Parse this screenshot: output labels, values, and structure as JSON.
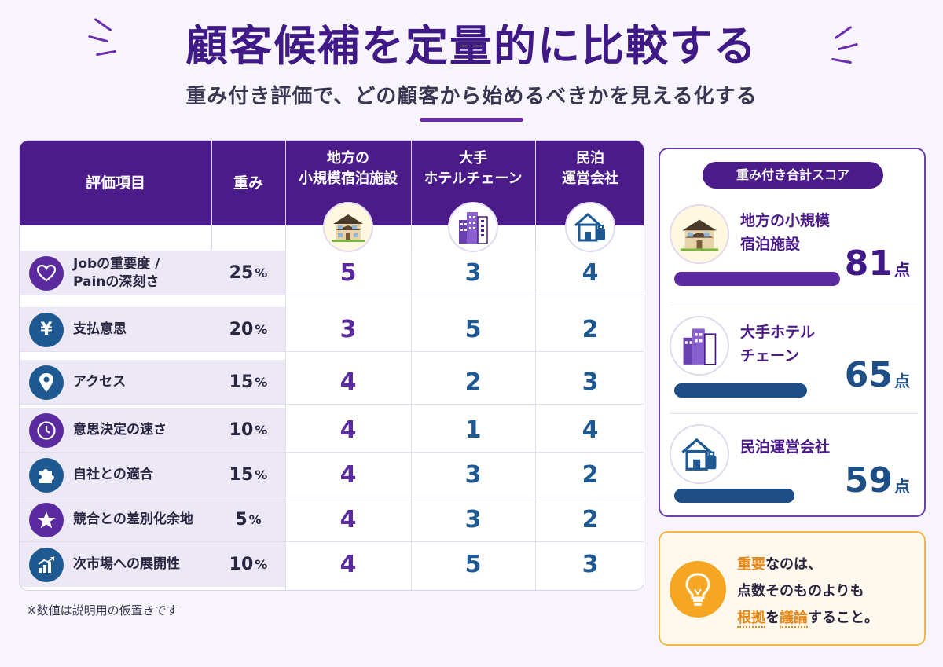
{
  "header": {
    "title": "顧客候補を定量的に比較する",
    "subtitle": "重み付き評価で、どの顧客から始めるべきかを見える化する"
  },
  "table": {
    "columns": {
      "item": "評価項目",
      "weight": "重み",
      "c1_line1": "地方の",
      "c1_line2": "小規模宿泊施設",
      "c2_line1": "大手",
      "c2_line2": "ホテルチェーン",
      "c3_line1": "民泊",
      "c3_line2": "運営会社"
    },
    "rows": [
      {
        "label1": "Jobの重要度 /",
        "label2": "Painの深刻さ",
        "icon": "heart-icon",
        "weight": "25",
        "unit": "%",
        "s1": "5",
        "s2": "3",
        "s3": "4"
      },
      {
        "label1": "支払意思",
        "label2": "",
        "icon": "yen-icon",
        "weight": "20",
        "unit": "%",
        "s1": "3",
        "s2": "5",
        "s3": "2"
      },
      {
        "label1": "アクセス",
        "label2": "",
        "icon": "location-pin-icon",
        "weight": "15",
        "unit": "%",
        "s1": "4",
        "s2": "2",
        "s3": "3"
      },
      {
        "label1": "意思決定の速さ",
        "label2": "",
        "icon": "clock-icon",
        "weight": "10",
        "unit": "%",
        "s1": "4",
        "s2": "1",
        "s3": "4"
      },
      {
        "label1": "自社との適合",
        "label2": "",
        "icon": "puzzle-icon",
        "weight": "15",
        "unit": "%",
        "s1": "4",
        "s2": "3",
        "s3": "2"
      },
      {
        "label1": "競合との差別化余地",
        "label2": "",
        "icon": "star-icon",
        "weight": "5",
        "unit": "%",
        "s1": "4",
        "s2": "3",
        "s3": "2"
      },
      {
        "label1": "次市場への展開性",
        "label2": "",
        "icon": "growth-chart-icon",
        "weight": "10",
        "unit": "%",
        "s1": "4",
        "s2": "5",
        "s3": "3"
      }
    ],
    "note": "※数値は説明用の仮置きです"
  },
  "scores": {
    "title": "重み付き合計スコア",
    "unit": "点",
    "entries": [
      {
        "name1": "地方の小規模",
        "name2": "宿泊施設",
        "value": "81",
        "fraction": 0.81,
        "color": "#5a2a9e",
        "icon": "house-icon"
      },
      {
        "name1": "大手ホテル",
        "name2": "チェーン",
        "value": "65",
        "fraction": 0.65,
        "color": "#1e4e86",
        "icon": "hotel-building-icon"
      },
      {
        "name1": "民泊運営会社",
        "name2": "",
        "value": "59",
        "fraction": 0.59,
        "color": "#1e4e86",
        "icon": "home-suitcase-icon"
      }
    ]
  },
  "tip": {
    "l1_a": "重要",
    "l1_b": "なのは、",
    "l2": "点数そのものよりも",
    "l3_a": "根拠",
    "l3_b": "を",
    "l3_c": "議論",
    "l3_d": "すること。"
  },
  "colors": {
    "primary_purple": "#4b1b8a",
    "score_purple": "#5a2a9e",
    "score_blue": "#1e5a91",
    "accent_orange": "#f5a623"
  }
}
